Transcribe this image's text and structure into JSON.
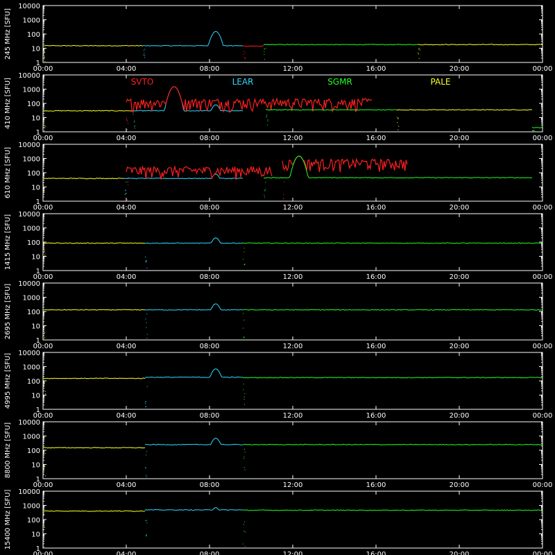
{
  "chart_data": {
    "type": "line",
    "y_unit_label": "[SFU]",
    "y_scale": "log",
    "ylim": [
      1,
      10000
    ],
    "y_ticks": [
      "1",
      "10",
      "100",
      "1000",
      "10000"
    ],
    "x_ticks": [
      "00:00",
      "04:00",
      "08:00",
      "12:00",
      "16:00",
      "20:00",
      "00:00"
    ],
    "xlim_hours": [
      0,
      24
    ],
    "grid": false,
    "legend": {
      "placement": "top inside panel 2",
      "entries": [
        {
          "name": "SVTO",
          "color": "#ff2020"
        },
        {
          "name": "LEAR",
          "color": "#30d8ff"
        },
        {
          "name": "SGMR",
          "color": "#20ff20"
        },
        {
          "name": "PALE",
          "color": "#ffff20"
        }
      ]
    },
    "panels": [
      {
        "freq_label": "245 MHz",
        "station_spans": [
          {
            "station": "PALE",
            "from_h": 0,
            "to_h": 4.8,
            "level": 15
          },
          {
            "station": "LEAR",
            "from_h": 4.8,
            "to_h": 9.6,
            "level": 15
          },
          {
            "station": "SVTO",
            "from_h": 9.6,
            "to_h": 10.6,
            "level": 14
          },
          {
            "station": "SGMR",
            "from_h": 10.6,
            "to_h": 18.0,
            "level": 18
          },
          {
            "station": "PALE",
            "from_h": 18.0,
            "to_h": 24,
            "level": 18
          }
        ],
        "peaks": [
          {
            "h": 8.3,
            "value": 150
          }
        ]
      },
      {
        "freq_label": "410 MHz",
        "station_spans": [
          {
            "station": "PALE",
            "from_h": 0,
            "to_h": 4.3,
            "level": 30
          },
          {
            "station": "LEAR",
            "from_h": 4.3,
            "to_h": 9.6,
            "level": 30
          },
          {
            "station": "SVTO",
            "from_h": 4.0,
            "to_h": 15.8,
            "level": 120
          },
          {
            "station": "SGMR",
            "from_h": 10.7,
            "to_h": 17.0,
            "level": 35
          },
          {
            "station": "PALE",
            "from_h": 17.0,
            "to_h": 23.5,
            "level": 35
          },
          {
            "station": "SGMR",
            "from_h": 23.5,
            "to_h": 24,
            "level": 2
          }
        ],
        "peaks": [
          {
            "h": 6.3,
            "value": 1500
          },
          {
            "h": 8.3,
            "value": 80
          }
        ]
      },
      {
        "freq_label": "610 MHz",
        "station_spans": [
          {
            "station": "PALE",
            "from_h": 0,
            "to_h": 3.9,
            "level": 40
          },
          {
            "station": "LEAR",
            "from_h": 3.9,
            "to_h": 9.6,
            "level": 40
          },
          {
            "station": "SVTO",
            "from_h": 4.0,
            "to_h": 11.0,
            "level": 150
          },
          {
            "station": "SVTO",
            "from_h": 11.5,
            "to_h": 17.5,
            "level": 500
          },
          {
            "station": "SGMR",
            "from_h": 10.6,
            "to_h": 23.5,
            "level": 45
          }
        ],
        "peaks": [
          {
            "h": 12.3,
            "value": 1500
          },
          {
            "h": 8.3,
            "value": 80
          }
        ]
      },
      {
        "freq_label": "1415 MHz",
        "station_spans": [
          {
            "station": "PALE",
            "from_h": 0,
            "to_h": 4.9,
            "level": 85
          },
          {
            "station": "LEAR",
            "from_h": 4.9,
            "to_h": 9.6,
            "level": 85
          },
          {
            "station": "SGMR",
            "from_h": 9.6,
            "to_h": 24,
            "level": 85
          }
        ],
        "peaks": [
          {
            "h": 8.3,
            "value": 200
          }
        ]
      },
      {
        "freq_label": "2695 MHz",
        "station_spans": [
          {
            "station": "PALE",
            "from_h": 0,
            "to_h": 4.9,
            "level": 130
          },
          {
            "station": "LEAR",
            "from_h": 4.9,
            "to_h": 9.6,
            "level": 130
          },
          {
            "station": "SGMR",
            "from_h": 9.6,
            "to_h": 24,
            "level": 130
          }
        ],
        "peaks": [
          {
            "h": 8.3,
            "value": 350
          }
        ]
      },
      {
        "freq_label": "4995 MHz",
        "station_spans": [
          {
            "station": "PALE",
            "from_h": 0,
            "to_h": 4.9,
            "level": 150
          },
          {
            "station": "LEAR",
            "from_h": 4.9,
            "to_h": 9.6,
            "level": 180
          },
          {
            "station": "SGMR",
            "from_h": 9.6,
            "to_h": 24,
            "level": 170
          }
        ],
        "peaks": [
          {
            "h": 8.3,
            "value": 700
          }
        ]
      },
      {
        "freq_label": "8800 MHz",
        "station_spans": [
          {
            "station": "PALE",
            "from_h": 0,
            "to_h": 4.9,
            "level": 150
          },
          {
            "station": "LEAR",
            "from_h": 4.9,
            "to_h": 9.6,
            "level": 250
          },
          {
            "station": "SGMR",
            "from_h": 9.6,
            "to_h": 24,
            "level": 250
          }
        ],
        "peaks": [
          {
            "h": 8.3,
            "value": 700
          }
        ]
      },
      {
        "freq_label": "15400 MHz",
        "station_spans": [
          {
            "station": "PALE",
            "from_h": 0,
            "to_h": 4.9,
            "level": 400
          },
          {
            "station": "LEAR",
            "from_h": 4.9,
            "to_h": 9.6,
            "level": 480
          },
          {
            "station": "SGMR",
            "from_h": 9.6,
            "to_h": 24,
            "level": 460
          }
        ],
        "peaks": [
          {
            "h": 8.3,
            "value": 700
          }
        ]
      }
    ]
  }
}
